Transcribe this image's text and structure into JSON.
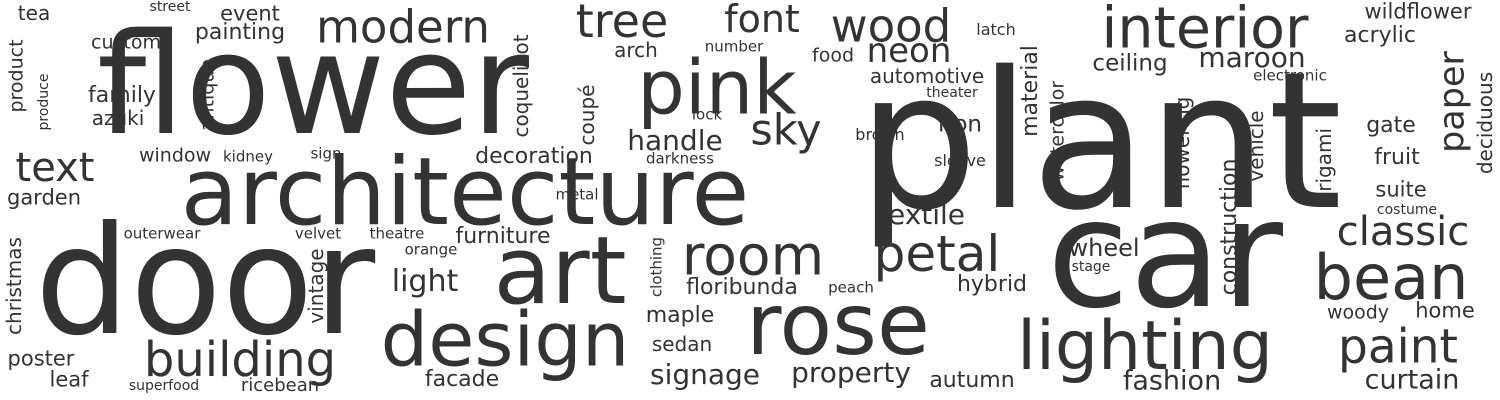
{
  "text_color": "#333333",
  "background_color": "#ffffff",
  "words": [
    "plant",
    "flower",
    "car",
    "door",
    "architecture",
    "art",
    "rose",
    "lighting",
    "design",
    "pink",
    "tree",
    "interior",
    "modern",
    "wood",
    "room",
    "petal",
    "bean",
    "building",
    "paint",
    "classic",
    "text",
    "font",
    "neon",
    "paper",
    "sky",
    "signage",
    "property",
    "fashion",
    "curtain",
    "maroon",
    "textile",
    "handle",
    "light",
    "decoration",
    "furniture",
    "floribunda",
    "maple",
    "sedan",
    "facade",
    "autumn",
    "wheel",
    "hybrid",
    "ceiling",
    "iron",
    "brown",
    "window",
    "kidney",
    "family",
    "azuki",
    "custom",
    "painting",
    "event",
    "tea",
    "street",
    "arch",
    "number",
    "food",
    "latch",
    "wildflower",
    "acrylic",
    "automotive",
    "theater",
    "electronic",
    "lock",
    "darkness",
    "sleeve",
    "sign",
    "metal",
    "outerwear",
    "velvet",
    "theatre",
    "orange",
    "peach",
    "stage",
    "garden",
    "poster",
    "leaf",
    "superfood",
    "ricebean",
    "woody",
    "home",
    "gate",
    "fruit",
    "suite",
    "costume",
    "christmas",
    "vintage",
    "antique",
    "coquelicot",
    "coupé",
    "clothing",
    "material",
    "watercolor",
    "flowering",
    "construction",
    "vehicle",
    "origami",
    "deciduous",
    "product",
    "produce"
  ]
}
